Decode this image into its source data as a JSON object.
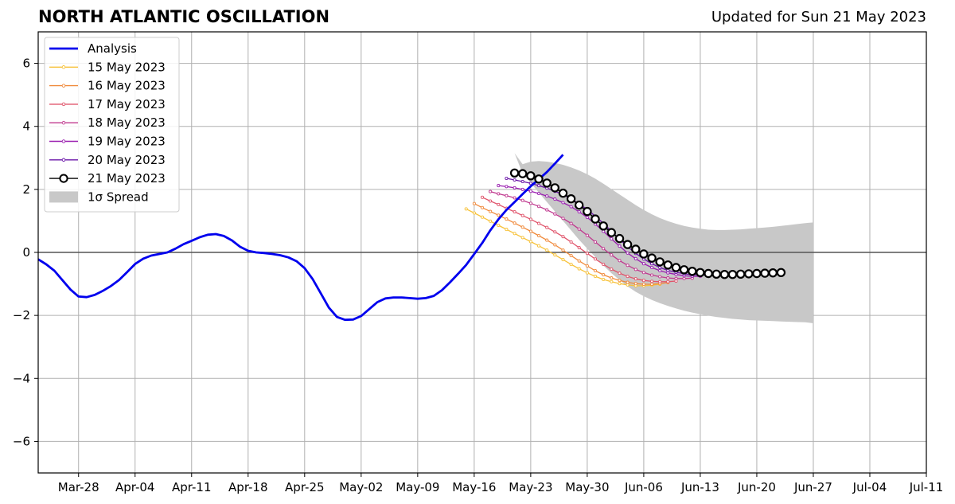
{
  "chart_data": {
    "type": "line",
    "title": "NORTH ATLANTIC OSCILLATION",
    "subtitle": "Updated for Sun 21 May 2023",
    "xlim": [
      "2023-03-23",
      "2023-07-11"
    ],
    "ylim": [
      -7,
      7
    ],
    "x_tick_labels": [
      "Mar-28",
      "Apr-04",
      "Apr-11",
      "Apr-18",
      "Apr-25",
      "May-02",
      "May-09",
      "May-16",
      "May-23",
      "May-30",
      "Jun-06",
      "Jun-13",
      "Jun-20",
      "Jun-27",
      "Jul-04",
      "Jul-11"
    ],
    "y_ticks": [
      -6,
      -4,
      -2,
      0,
      2,
      4,
      6
    ],
    "y_tick_labels": [
      "−6",
      "−4",
      "−2",
      "0",
      "2",
      "4",
      "6"
    ],
    "grid": true,
    "legend_position": "top-left",
    "colors": {
      "analysis": "#0000ee",
      "spread": "#c8c8c8",
      "grid": "#b0b0b0",
      "zero_line": "#555555"
    },
    "analysis": {
      "name": "Analysis",
      "color": "#0000ee",
      "start_date": "2023-03-23",
      "values": [
        -0.22,
        -0.38,
        -0.58,
        -0.88,
        -1.18,
        -1.4,
        -1.42,
        -1.35,
        -1.22,
        -1.07,
        -0.88,
        -0.63,
        -0.37,
        -0.2,
        -0.1,
        -0.05,
        0.0,
        0.12,
        0.26,
        0.37,
        0.48,
        0.56,
        0.58,
        0.52,
        0.38,
        0.18,
        0.05,
        0.0,
        -0.02,
        -0.05,
        -0.09,
        -0.16,
        -0.28,
        -0.5,
        -0.85,
        -1.3,
        -1.75,
        -2.05,
        -2.14,
        -2.13,
        -2.02,
        -1.8,
        -1.58,
        -1.46,
        -1.43,
        -1.43,
        -1.45,
        -1.47,
        -1.45,
        -1.38,
        -1.2,
        -0.95,
        -0.68,
        -0.4,
        -0.05,
        0.3,
        0.7,
        1.05,
        1.35,
        1.6,
        1.85,
        2.1,
        2.32,
        2.55,
        2.82,
        3.1
      ]
    },
    "forecasts": [
      {
        "name": "15 May 2023",
        "color": "#f7c23a",
        "start_date": "2023-05-15",
        "values": [
          1.38,
          1.25,
          1.12,
          0.99,
          0.86,
          0.73,
          0.6,
          0.47,
          0.34,
          0.21,
          0.07,
          -0.08,
          -0.23,
          -0.38,
          -0.52,
          -0.65,
          -0.76,
          -0.86,
          -0.93,
          -0.99,
          -1.03,
          -1.06,
          -1.06,
          -1.04,
          -1.01
        ]
      },
      {
        "name": "16 May 2023",
        "color": "#f08a3c",
        "start_date": "2023-05-16",
        "values": [
          1.55,
          1.42,
          1.3,
          1.18,
          1.06,
          0.93,
          0.8,
          0.67,
          0.53,
          0.39,
          0.24,
          0.07,
          -0.1,
          -0.27,
          -0.43,
          -0.58,
          -0.71,
          -0.81,
          -0.89,
          -0.95,
          -0.99,
          -1.01,
          -1.01,
          -0.99,
          -0.96
        ]
      },
      {
        "name": "17 May 2023",
        "color": "#e0546b",
        "start_date": "2023-05-17",
        "values": [
          1.75,
          1.63,
          1.52,
          1.4,
          1.29,
          1.17,
          1.05,
          0.92,
          0.79,
          0.65,
          0.5,
          0.33,
          0.15,
          -0.03,
          -0.21,
          -0.38,
          -0.53,
          -0.66,
          -0.76,
          -0.84,
          -0.89,
          -0.92,
          -0.93,
          -0.93,
          -0.91
        ]
      },
      {
        "name": "18 May 2023",
        "color": "#c0398f",
        "start_date": "2023-05-18",
        "values": [
          1.93,
          1.86,
          1.8,
          1.73,
          1.65,
          1.56,
          1.46,
          1.35,
          1.22,
          1.08,
          0.92,
          0.74,
          0.54,
          0.33,
          0.12,
          -0.08,
          -0.26,
          -0.41,
          -0.54,
          -0.64,
          -0.72,
          -0.77,
          -0.81,
          -0.83,
          -0.83,
          -0.82
        ]
      },
      {
        "name": "19 May 2023",
        "color": "#9a1fb0",
        "start_date": "2023-05-19",
        "values": [
          2.12,
          2.09,
          2.05,
          2.0,
          1.94,
          1.87,
          1.79,
          1.69,
          1.58,
          1.45,
          1.29,
          1.11,
          0.9,
          0.67,
          0.43,
          0.2,
          -0.02,
          -0.2,
          -0.36,
          -0.48,
          -0.58,
          -0.65,
          -0.7,
          -0.74,
          -0.76,
          -0.76
        ]
      },
      {
        "name": "20 May 2023",
        "color": "#6a14a8",
        "start_date": "2023-05-20",
        "values": [
          2.35,
          2.3,
          2.25,
          2.19,
          2.12,
          2.04,
          1.94,
          1.83,
          1.7,
          1.54,
          1.36,
          1.15,
          0.92,
          0.67,
          0.42,
          0.18,
          -0.03,
          -0.21,
          -0.36,
          -0.48,
          -0.57,
          -0.63,
          -0.68,
          -0.71,
          -0.72,
          -0.72
        ]
      }
    ],
    "main_forecast": {
      "name": "21 May 2023",
      "color": "#000000",
      "start_date": "2023-05-21",
      "values": [
        2.52,
        2.5,
        2.43,
        2.33,
        2.2,
        2.05,
        1.88,
        1.7,
        1.5,
        1.3,
        1.06,
        0.84,
        0.63,
        0.44,
        0.25,
        0.1,
        -0.05,
        -0.18,
        -0.3,
        -0.4,
        -0.48,
        -0.55,
        -0.6,
        -0.64,
        -0.67,
        -0.69,
        -0.7,
        -0.7,
        -0.69,
        -0.68,
        -0.67,
        -0.66,
        -0.65,
        -0.64
      ]
    },
    "spread": {
      "name": "1σ Spread",
      "start_date": "2023-05-21",
      "upper": [
        3.15,
        2.8,
        2.88,
        2.9,
        2.88,
        2.84,
        2.78,
        2.7,
        2.6,
        2.48,
        2.34,
        2.18,
        2.01,
        1.84,
        1.67,
        1.5,
        1.35,
        1.21,
        1.09,
        0.99,
        0.91,
        0.84,
        0.79,
        0.75,
        0.72,
        0.71,
        0.71,
        0.72,
        0.73,
        0.75,
        0.77,
        0.79,
        0.81,
        0.84,
        0.87,
        0.9,
        0.93,
        0.95
      ],
      "lower": [
        3.15,
        2.5,
        2.2,
        1.9,
        1.6,
        1.3,
        1.0,
        0.7,
        0.4,
        0.12,
        -0.15,
        -0.42,
        -0.66,
        -0.88,
        -1.08,
        -1.25,
        -1.39,
        -1.51,
        -1.61,
        -1.7,
        -1.78,
        -1.85,
        -1.91,
        -1.96,
        -2.01,
        -2.05,
        -2.08,
        -2.11,
        -2.13,
        -2.15,
        -2.16,
        -2.17,
        -2.18,
        -2.19,
        -2.2,
        -2.21,
        -2.22,
        -2.25
      ]
    }
  }
}
